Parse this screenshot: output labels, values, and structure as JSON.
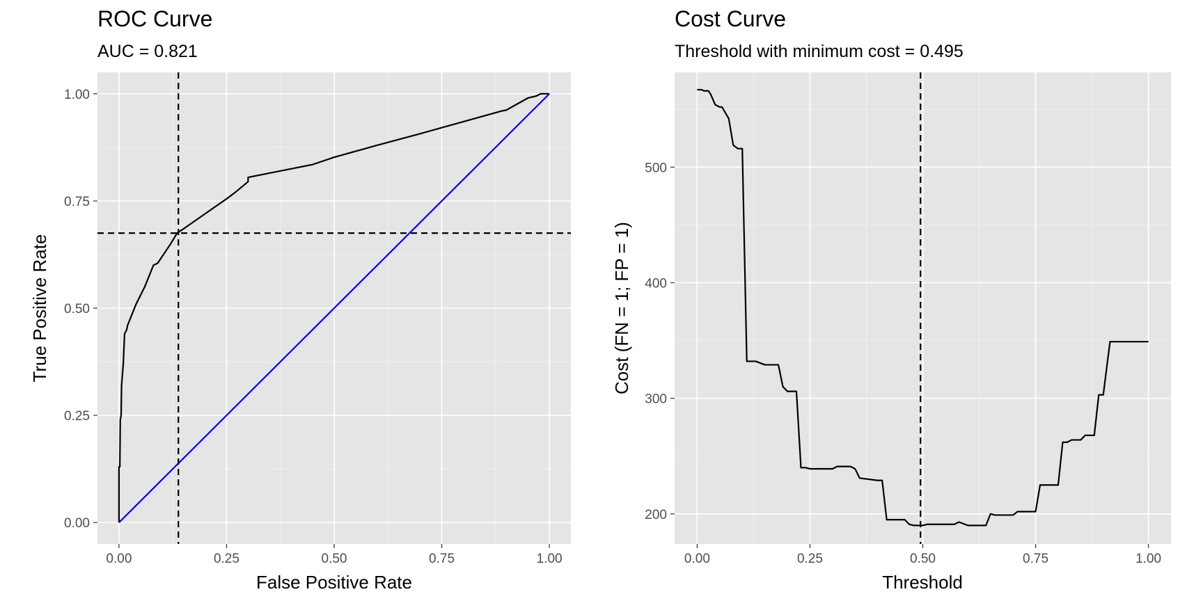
{
  "chart_data": [
    {
      "type": "line",
      "title": "ROC Curve",
      "subtitle": "AUC = 0.821",
      "xlabel": "False Positive Rate",
      "ylabel": "True Positive Rate",
      "xlim": [
        -0.05,
        1.05
      ],
      "ylim": [
        -0.05,
        1.05
      ],
      "x_ticks": [
        0,
        0.25,
        0.5,
        0.75,
        1
      ],
      "x_tick_labels": [
        "0.00",
        "0.25",
        "0.50",
        "0.75",
        "1.00"
      ],
      "y_ticks": [
        0,
        0.25,
        0.5,
        0.75,
        1
      ],
      "y_tick_labels": [
        "0.00",
        "0.25",
        "0.50",
        "0.75",
        "1.00"
      ],
      "grid": true,
      "series": [
        {
          "color": "#000000",
          "x": [
            0,
            0,
            0.002,
            0.003,
            0.005,
            0.006,
            0.01,
            0.013,
            0.018,
            0.02,
            0.04,
            0.06,
            0.08,
            0.09,
            0.1,
            0.12,
            0.135,
            0.15,
            0.2,
            0.25,
            0.27,
            0.3,
            0.3,
            0.35,
            0.4,
            0.44,
            0.45,
            0.5,
            0.6,
            0.7,
            0.8,
            0.89,
            0.9,
            0.95,
            0.97,
            0.98,
            1
          ],
          "y": [
            0,
            0.13,
            0.13,
            0.24,
            0.25,
            0.32,
            0.37,
            0.44,
            0.45,
            0.46,
            0.51,
            0.55,
            0.6,
            0.605,
            0.62,
            0.65,
            0.675,
            0.685,
            0.72,
            0.755,
            0.77,
            0.795,
            0.805,
            0.815,
            0.825,
            0.833,
            0.835,
            0.852,
            0.88,
            0.907,
            0.935,
            0.96,
            0.962,
            0.99,
            0.995,
            1,
            1
          ]
        },
        {
          "color": "#0000ff",
          "x": [
            0,
            1
          ],
          "y": [
            0,
            1
          ]
        }
      ],
      "reference_lines": {
        "vertical": 0.138,
        "horizontal": 0.675
      }
    },
    {
      "type": "line",
      "title": "Cost Curve",
      "subtitle": "Threshold with minimum cost = 0.495",
      "xlabel": "Threshold",
      "ylabel": "Cost (FN = 1; FP = 1)",
      "xlim": [
        -0.05,
        1.05
      ],
      "ylim": [
        174,
        582
      ],
      "x_ticks": [
        0,
        0.25,
        0.5,
        0.75,
        1
      ],
      "x_tick_labels": [
        "0.00",
        "0.25",
        "0.50",
        "0.75",
        "1.00"
      ],
      "y_ticks": [
        200,
        300,
        400,
        500
      ],
      "y_tick_labels": [
        "200",
        "300",
        "400",
        "500"
      ],
      "grid": true,
      "series": [
        {
          "color": "#000000",
          "x": [
            0,
            0.01,
            0.015,
            0.025,
            0.03,
            0.04,
            0.05,
            0.055,
            0.07,
            0.08,
            0.09,
            0.1,
            0.11,
            0.12,
            0.13,
            0.15,
            0.16,
            0.18,
            0.19,
            0.2,
            0.21,
            0.22,
            0.23,
            0.24,
            0.25,
            0.3,
            0.31,
            0.34,
            0.35,
            0.36,
            0.4,
            0.41,
            0.42,
            0.46,
            0.47,
            0.48,
            0.5,
            0.51,
            0.52,
            0.57,
            0.58,
            0.6,
            0.61,
            0.64,
            0.65,
            0.66,
            0.7,
            0.71,
            0.74,
            0.75,
            0.76,
            0.77,
            0.8,
            0.81,
            0.82,
            0.83,
            0.85,
            0.86,
            0.88,
            0.89,
            0.9,
            0.91,
            0.915,
            0.93,
            1
          ],
          "y": [
            567,
            567,
            566,
            566,
            563,
            554,
            552,
            552,
            542,
            519,
            516,
            516,
            332,
            332,
            332,
            329,
            329,
            329,
            310,
            306,
            306,
            306,
            240,
            240,
            239,
            239,
            241,
            241,
            239,
            231,
            229,
            229,
            195,
            195,
            191,
            190,
            190,
            191,
            191,
            191,
            193,
            190,
            190,
            190,
            200,
            199,
            199,
            202,
            202,
            202,
            225,
            225,
            225,
            262,
            262,
            264,
            264,
            268,
            268,
            303,
            303,
            334,
            349,
            349,
            349
          ]
        }
      ],
      "reference_lines": {
        "vertical": 0.495
      }
    }
  ]
}
